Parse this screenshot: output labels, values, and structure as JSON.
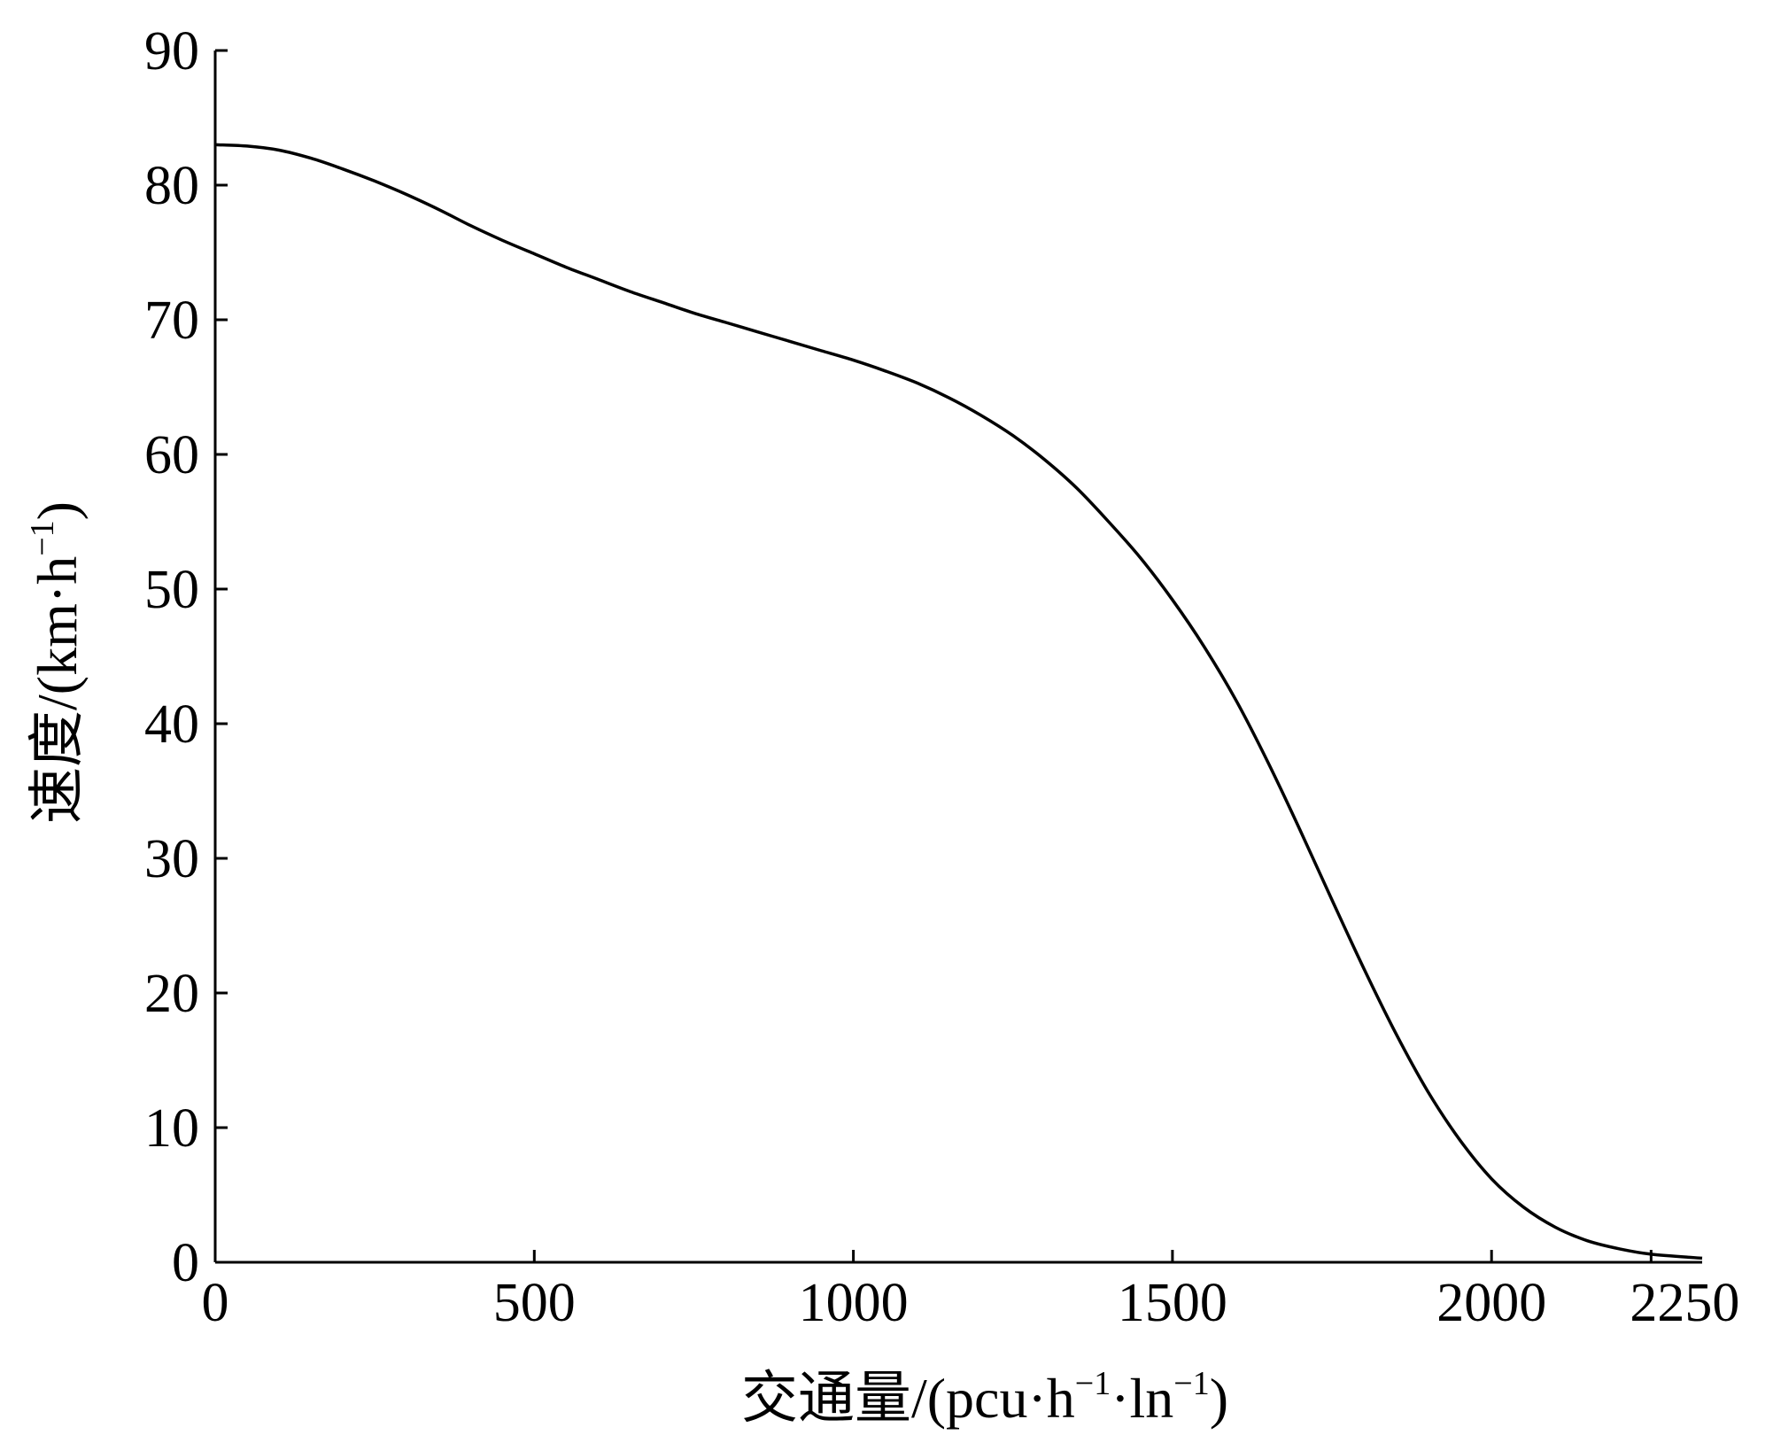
{
  "chart_data": {
    "type": "line",
    "title": "",
    "xlabel": {
      "main": "交通量/(pcu·h",
      "sup1": "−1",
      "mid": "·ln",
      "sup2": "−1",
      "end": ")"
    },
    "ylabel": {
      "main": "速度/(km·h",
      "sup1": "−1",
      "end": ")"
    },
    "xlim": [
      0,
      2330
    ],
    "ylim": [
      0,
      90
    ],
    "xticks": [
      0,
      500,
      1000,
      1500,
      2000,
      2250
    ],
    "xtick_labels": [
      "0",
      "500",
      "1000",
      "1500",
      "2000",
      "2250"
    ],
    "yticks": [
      0,
      10,
      20,
      30,
      40,
      50,
      60,
      70,
      80,
      90
    ],
    "ytick_labels": [
      "0",
      "10",
      "20",
      "30",
      "40",
      "50",
      "60",
      "70",
      "80",
      "90"
    ],
    "grid": false,
    "series": [
      {
        "color": "#000000",
        "x": [
          0,
          50,
          100,
          150,
          200,
          250,
          300,
          350,
          400,
          450,
          500,
          550,
          600,
          650,
          700,
          750,
          800,
          850,
          900,
          950,
          1000,
          1050,
          1100,
          1150,
          1200,
          1250,
          1300,
          1350,
          1400,
          1450,
          1500,
          1550,
          1600,
          1650,
          1700,
          1750,
          1800,
          1850,
          1900,
          1950,
          2000,
          2050,
          2100,
          2150,
          2200,
          2250,
          2330
        ],
        "y": [
          83.0,
          82.9,
          82.6,
          82.0,
          81.2,
          80.3,
          79.3,
          78.2,
          77.0,
          75.9,
          74.9,
          73.9,
          73.0,
          72.1,
          71.3,
          70.5,
          69.8,
          69.1,
          68.4,
          67.7,
          67.0,
          66.2,
          65.3,
          64.2,
          62.9,
          61.4,
          59.6,
          57.5,
          55.0,
          52.3,
          49.2,
          45.7,
          41.7,
          37.1,
          32.1,
          26.9,
          21.8,
          17.0,
          12.7,
          9.1,
          6.2,
          4.1,
          2.6,
          1.6,
          1.0,
          0.6,
          0.3
        ]
      }
    ]
  }
}
